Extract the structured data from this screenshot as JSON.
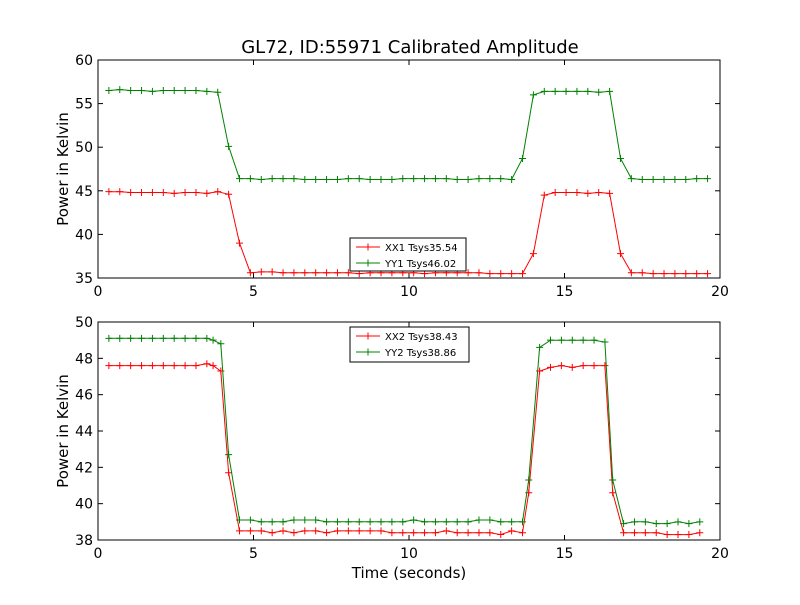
{
  "title": "GL72, ID:55971 Calibrated Amplitude",
  "colors": {
    "red": "#ff0000",
    "green": "#008000"
  },
  "chart_data": [
    {
      "type": "line",
      "xlabel": "",
      "ylabel": "Power in Kelvin",
      "xlim": [
        0,
        20
      ],
      "ylim": [
        35,
        60
      ],
      "xticks": [
        0,
        5,
        10,
        15,
        20
      ],
      "yticks": [
        35,
        40,
        45,
        50,
        55,
        60
      ],
      "grid": false,
      "legend_position": "bottom-center",
      "x": [
        0.35,
        0.7,
        1.05,
        1.4,
        1.75,
        2.1,
        2.45,
        2.8,
        3.15,
        3.5,
        3.85,
        4.2,
        4.55,
        4.9,
        5.25,
        5.6,
        5.95,
        6.3,
        6.65,
        7.0,
        7.35,
        7.7,
        8.05,
        8.4,
        8.75,
        9.1,
        9.45,
        9.8,
        10.15,
        10.5,
        10.85,
        11.2,
        11.55,
        11.9,
        12.25,
        12.6,
        12.95,
        13.3,
        13.65,
        14.0,
        14.35,
        14.7,
        15.05,
        15.4,
        15.75,
        16.1,
        16.45,
        16.8,
        17.15,
        17.5,
        17.85,
        18.2,
        18.55,
        18.9,
        19.25,
        19.6
      ],
      "series": [
        {
          "name": "XX1 Tsys35.54",
          "color": "#ff0000",
          "values": [
            44.9,
            44.9,
            44.8,
            44.8,
            44.8,
            44.8,
            44.7,
            44.8,
            44.8,
            44.7,
            44.9,
            44.6,
            39.0,
            35.6,
            35.7,
            35.7,
            35.6,
            35.6,
            35.6,
            35.6,
            35.6,
            35.6,
            35.6,
            35.5,
            35.6,
            35.6,
            35.6,
            35.6,
            35.6,
            35.5,
            35.6,
            35.6,
            35.6,
            35.6,
            35.6,
            35.5,
            35.5,
            35.5,
            35.5,
            37.8,
            44.5,
            44.8,
            44.8,
            44.8,
            44.7,
            44.8,
            44.7,
            37.8,
            35.6,
            35.6,
            35.5,
            35.5,
            35.5,
            35.5,
            35.5,
            35.5
          ]
        },
        {
          "name": "YY1 Tsys46.02",
          "color": "#008000",
          "values": [
            56.5,
            56.6,
            56.5,
            56.5,
            56.4,
            56.5,
            56.5,
            56.5,
            56.5,
            56.4,
            56.3,
            50.1,
            46.4,
            46.4,
            46.3,
            46.4,
            46.4,
            46.4,
            46.3,
            46.3,
            46.3,
            46.3,
            46.4,
            46.4,
            46.3,
            46.3,
            46.3,
            46.4,
            46.4,
            46.4,
            46.4,
            46.4,
            46.3,
            46.3,
            46.4,
            46.4,
            46.4,
            46.3,
            48.7,
            56.0,
            56.4,
            56.4,
            56.4,
            56.4,
            56.4,
            56.3,
            56.4,
            48.7,
            46.4,
            46.3,
            46.3,
            46.3,
            46.3,
            46.3,
            46.4,
            46.4
          ]
        }
      ]
    },
    {
      "type": "line",
      "xlabel": "Time (seconds)",
      "ylabel": "Power in Kelvin",
      "xlim": [
        0,
        20
      ],
      "ylim": [
        38,
        50
      ],
      "xticks": [
        0,
        5,
        10,
        15,
        20
      ],
      "yticks": [
        38,
        40,
        42,
        44,
        46,
        48,
        50
      ],
      "grid": false,
      "legend_position": "top-center",
      "x": [
        0.35,
        0.7,
        1.05,
        1.4,
        1.75,
        2.1,
        2.45,
        2.8,
        3.15,
        3.5,
        3.7,
        3.95,
        4.2,
        4.55,
        4.9,
        5.25,
        5.6,
        5.95,
        6.3,
        6.65,
        7.0,
        7.35,
        7.7,
        8.05,
        8.4,
        8.75,
        9.1,
        9.45,
        9.8,
        10.15,
        10.5,
        10.85,
        11.2,
        11.55,
        11.9,
        12.25,
        12.6,
        12.95,
        13.3,
        13.65,
        13.85,
        14.2,
        14.55,
        14.9,
        15.25,
        15.6,
        15.95,
        16.3,
        16.55,
        16.9,
        17.25,
        17.6,
        17.95,
        18.3,
        18.65,
        19.0,
        19.35
      ],
      "series": [
        {
          "name": "XX2 Tsys38.43",
          "color": "#ff0000",
          "values": [
            47.6,
            47.6,
            47.6,
            47.6,
            47.6,
            47.6,
            47.6,
            47.6,
            47.6,
            47.7,
            47.6,
            47.3,
            41.7,
            38.5,
            38.5,
            38.5,
            38.4,
            38.5,
            38.4,
            38.5,
            38.5,
            38.4,
            38.5,
            38.5,
            38.5,
            38.5,
            38.5,
            38.4,
            38.4,
            38.4,
            38.4,
            38.4,
            38.5,
            38.4,
            38.4,
            38.4,
            38.4,
            38.3,
            38.5,
            38.4,
            40.6,
            47.3,
            47.5,
            47.6,
            47.5,
            47.6,
            47.6,
            47.6,
            40.6,
            38.4,
            38.4,
            38.4,
            38.4,
            38.3,
            38.3,
            38.3,
            38.4
          ]
        },
        {
          "name": "YY2 Tsys38.86",
          "color": "#008000",
          "values": [
            49.1,
            49.1,
            49.1,
            49.1,
            49.1,
            49.1,
            49.1,
            49.1,
            49.1,
            49.1,
            49.0,
            48.8,
            42.7,
            39.1,
            39.1,
            39.0,
            39.0,
            39.0,
            39.1,
            39.1,
            39.1,
            39.0,
            39.0,
            39.0,
            39.0,
            39.0,
            39.0,
            39.0,
            39.0,
            39.1,
            39.0,
            39.0,
            39.0,
            39.0,
            39.0,
            39.1,
            39.1,
            39.0,
            39.0,
            39.0,
            41.3,
            48.6,
            49.0,
            49.0,
            49.0,
            49.0,
            49.0,
            48.9,
            41.3,
            38.9,
            39.0,
            39.0,
            38.9,
            38.9,
            39.0,
            38.9,
            39.0
          ]
        }
      ]
    }
  ]
}
